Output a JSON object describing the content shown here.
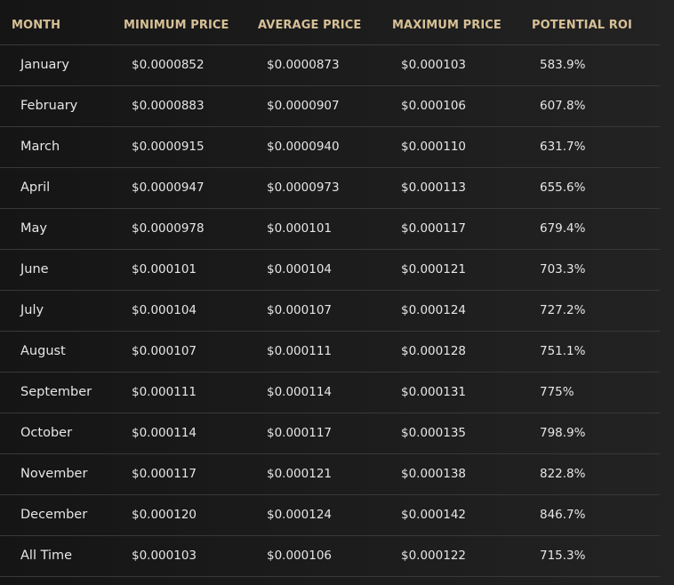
{
  "table": {
    "headers": {
      "month": "MONTH",
      "min": "MINIMUM PRICE",
      "avg": "AVERAGE PRICE",
      "max": "MAXIMUM PRICE",
      "roi": "POTENTIAL ROI"
    },
    "rows": [
      {
        "month": "January",
        "min": "$0.0000852",
        "avg": "$0.0000873",
        "max": "$0.000103",
        "roi": "583.9%"
      },
      {
        "month": "February",
        "min": "$0.0000883",
        "avg": "$0.0000907",
        "max": "$0.000106",
        "roi": "607.8%"
      },
      {
        "month": "March",
        "min": "$0.0000915",
        "avg": "$0.0000940",
        "max": "$0.000110",
        "roi": "631.7%"
      },
      {
        "month": "April",
        "min": "$0.0000947",
        "avg": "$0.0000973",
        "max": "$0.000113",
        "roi": "655.6%"
      },
      {
        "month": "May",
        "min": "$0.0000978",
        "avg": "$0.000101",
        "max": "$0.000117",
        "roi": "679.4%"
      },
      {
        "month": "June",
        "min": "$0.000101",
        "avg": "$0.000104",
        "max": "$0.000121",
        "roi": "703.3%"
      },
      {
        "month": "July",
        "min": "$0.000104",
        "avg": "$0.000107",
        "max": "$0.000124",
        "roi": "727.2%"
      },
      {
        "month": "August",
        "min": "$0.000107",
        "avg": "$0.000111",
        "max": "$0.000128",
        "roi": "751.1%"
      },
      {
        "month": "September",
        "min": "$0.000111",
        "avg": "$0.000114",
        "max": "$0.000131",
        "roi": "775%"
      },
      {
        "month": "October",
        "min": "$0.000114",
        "avg": "$0.000117",
        "max": "$0.000135",
        "roi": "798.9%"
      },
      {
        "month": "November",
        "min": "$0.000117",
        "avg": "$0.000121",
        "max": "$0.000138",
        "roi": "822.8%"
      },
      {
        "month": "December",
        "min": "$0.000120",
        "avg": "$0.000124",
        "max": "$0.000142",
        "roi": "846.7%"
      },
      {
        "month": "All Time",
        "min": "$0.000103",
        "avg": "$0.000106",
        "max": "$0.000122",
        "roi": "715.3%"
      }
    ]
  },
  "colors": {
    "header_text": "#d7c096",
    "body_text": "#e6e6e6",
    "divider": "#383838",
    "background": "#1c1c1c"
  }
}
